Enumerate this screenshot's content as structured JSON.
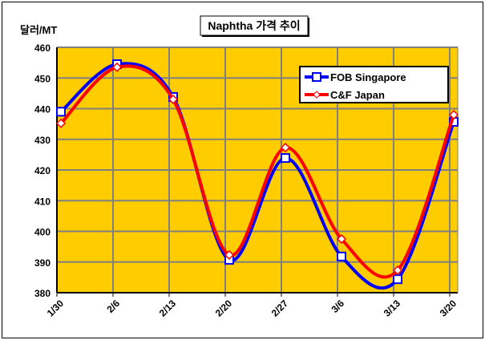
{
  "chart_data": {
    "type": "line",
    "title": "Naphtha 가격 추이",
    "ylabel": "달러/MT",
    "xlabel": "",
    "categories": [
      "1/30",
      "2/6",
      "2/13",
      "2/20",
      "2/27",
      "3/6",
      "3/13",
      "3/20"
    ],
    "yticks": [
      380,
      390,
      400,
      410,
      420,
      430,
      440,
      450,
      460
    ],
    "ylim": [
      380,
      460
    ],
    "grid": true,
    "legend_position": "top-right",
    "series": [
      {
        "name": "FOB Singapore",
        "color": "#0000FF",
        "marker": "square",
        "values": [
          439,
          454.5,
          443.8,
          390.7,
          423.9,
          391.8,
          384.4,
          435.7
        ]
      },
      {
        "name": "C&F Japan",
        "color": "#FF0000",
        "marker": "diamond",
        "values": [
          435.2,
          453.5,
          443,
          392.3,
          427.3,
          397.5,
          387.3,
          438
        ]
      }
    ],
    "plot_background": "#FFCC00"
  }
}
